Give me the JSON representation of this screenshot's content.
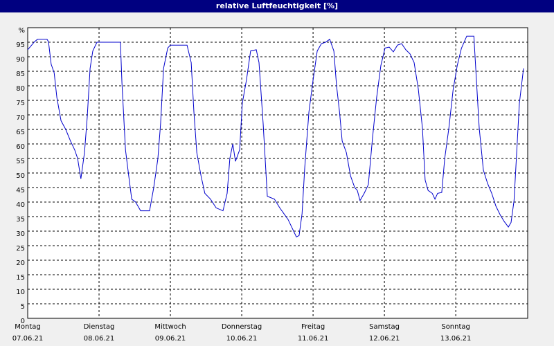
{
  "chart_data": {
    "type": "line",
    "title": "relative Luftfeuchtigkeit [%]",
    "x": [
      0,
      2.3,
      3.3,
      6.5,
      7,
      7.9,
      8.9,
      9.8,
      11.2,
      12.8,
      14.4,
      15.8,
      16.8,
      17.9,
      19.1,
      20,
      21,
      21.9,
      23.3,
      31.2,
      31.7,
      32.9,
      34,
      35,
      36.3,
      38,
      41,
      42.4,
      43.8,
      44.7,
      45.7,
      47.1,
      48,
      53.6,
      55,
      55.9,
      56.9,
      58.3,
      59.6,
      61.5,
      63.4,
      65.7,
      67.1,
      68,
      69,
      69.9,
      71.3,
      72.2,
      73.6,
      75,
      76.9,
      77.8,
      79.2,
      80.6,
      83,
      84.8,
      86.2,
      87.6,
      89,
      90.4,
      91.3,
      92.3,
      93.2,
      94.6,
      96,
      97.4,
      98.8,
      100.2,
      101.6,
      103,
      103.9,
      104.9,
      105.8,
      107.2,
      108.6,
      110,
      110.9,
      111.8,
      113.2,
      114.6,
      116,
      117.4,
      118.8,
      120.2,
      121.6,
      123,
      124.4,
      125.8,
      127.2,
      128.6,
      130,
      131.4,
      132.8,
      133.7,
      134.7,
      136.1,
      137,
      137.9,
      139.3,
      140.3,
      141.7,
      143.1,
      144.5,
      145.9,
      147.7,
      150.1,
      151,
      151.9,
      153.3,
      154.7,
      156.1,
      157.5,
      158.9,
      160.3,
      161.7,
      162.6,
      163.6,
      164.5,
      165.4,
      166.8
    ],
    "series": [
      {
        "color": "#0000cc",
        "values": [
          92.4,
          95.2,
          96,
          96,
          95.2,
          87.4,
          84.5,
          76,
          68,
          65,
          61,
          58,
          55,
          48,
          57,
          69,
          86,
          92,
          95,
          95,
          81,
          58,
          49,
          41,
          40,
          37,
          37,
          45,
          55,
          67,
          86,
          93,
          94,
          94,
          88,
          71,
          57,
          49,
          43,
          41,
          38,
          37,
          43,
          55,
          60,
          54,
          58,
          74,
          82,
          92,
          92.4,
          88,
          67,
          42,
          41,
          38,
          36,
          34,
          31,
          28,
          28.5,
          36,
          52,
          71,
          82,
          92,
          94.5,
          95,
          96,
          92,
          80,
          71,
          61,
          57,
          49,
          45,
          44,
          40.5,
          43,
          46,
          62,
          76,
          87,
          93,
          93.3,
          91.7,
          94,
          94.5,
          92.4,
          91,
          88,
          79,
          65.5,
          47.6,
          44,
          43,
          41,
          43,
          43.3,
          55,
          65.5,
          78.6,
          87,
          92.9,
          97.1,
          97.1,
          81,
          65.5,
          51,
          46.4,
          43,
          38.6,
          35.7,
          33.3,
          31.4,
          33,
          40.5,
          57,
          74,
          86
        ]
      }
    ],
    "xlim": [
      0,
      168.2
    ],
    "xticks": [
      {
        "value": 0,
        "label": "Montag"
      },
      {
        "value": 24,
        "label": "Dienstag"
      },
      {
        "value": 48,
        "label": "Mittwoch"
      },
      {
        "value": 72,
        "label": "Donnerstag"
      },
      {
        "value": 96,
        "label": "Freitag"
      },
      {
        "value": 120,
        "label": "Samstag"
      },
      {
        "value": 144,
        "label": "Sonntag"
      }
    ],
    "xtick_dates": [
      "07.06.21",
      "08.06.21",
      "09.06.21",
      "10.06.21",
      "11.06.21",
      "12.06.21",
      "13.06.21"
    ],
    "ylim": [
      0,
      100
    ],
    "yticks": [
      0,
      5,
      10,
      15,
      20,
      25,
      30,
      35,
      40,
      45,
      50,
      55,
      60,
      65,
      70,
      75,
      80,
      85,
      90,
      95,
      {
        "value": 100,
        "label": "%"
      }
    ],
    "grid": true
  }
}
